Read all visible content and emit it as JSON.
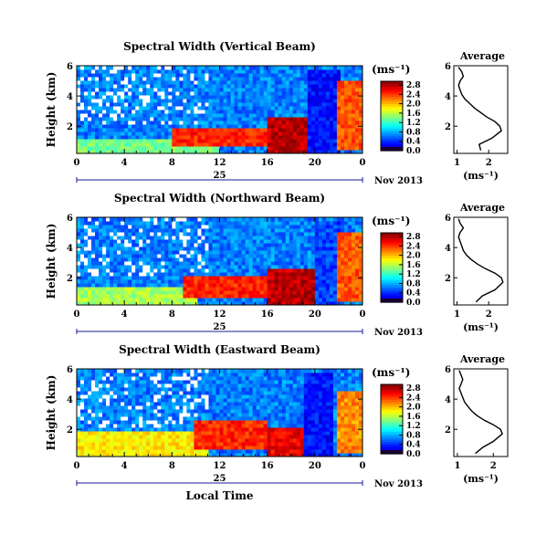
{
  "figure": {
    "time_axis_label": "Local Time",
    "day_label": "25",
    "date_label": "Nov 2013"
  },
  "chart_data": [
    {
      "type": "heatmap",
      "title": "Spectral Width (Vertical Beam)",
      "xlabel": "",
      "ylabel": "Height (km)",
      "x_ticks": [
        "0",
        "4",
        "8",
        "12",
        "16",
        "20",
        "0"
      ],
      "y_ticks": [
        "2",
        "4",
        "6"
      ],
      "xlim": [
        0,
        24
      ],
      "ylim": [
        0.2,
        6
      ],
      "colorbar": {
        "unit": "(ms⁻¹)",
        "ticks": [
          "0.0",
          "0.4",
          "0.8",
          "1.2",
          "1.6",
          "2.0",
          "2.4",
          "2.8"
        ],
        "range": [
          0,
          3
        ]
      },
      "features": [
        {
          "x": [
            0,
            12
          ],
          "y": [
            0.3,
            1.2
          ],
          "level": 0.55
        },
        {
          "x": [
            8,
            16
          ],
          "y": [
            0.6,
            2.0
          ],
          "level": 0.9
        },
        {
          "x": [
            16,
            19.5
          ],
          "y": [
            0.3,
            2.5
          ],
          "level": 1.0
        },
        {
          "x": [
            19.5,
            22
          ],
          "y": [
            0.3,
            5.8
          ],
          "level": 0.2
        },
        {
          "x": [
            22,
            24
          ],
          "y": [
            0.5,
            5.0
          ],
          "level": 0.85
        }
      ]
    },
    {
      "type": "line",
      "title": "Average",
      "xlabel": "(ms⁻¹)",
      "x_ticks": [
        "1",
        "2"
      ],
      "y_ticks": [
        "2",
        "4",
        "6"
      ],
      "xlim": [
        0.9,
        2.6
      ],
      "ylim": [
        0.2,
        6
      ],
      "series": [
        {
          "x": [
            1.75,
            1.7,
            2.1,
            2.4,
            2.35,
            2.2,
            1.95,
            1.75,
            1.55,
            1.4,
            1.25,
            1.15,
            1.1,
            1.05,
            1.1,
            1.2,
            1.15,
            1.05
          ],
          "y": [
            0.4,
            0.8,
            1.2,
            1.7,
            2.0,
            2.3,
            2.6,
            2.9,
            3.2,
            3.5,
            3.8,
            4.1,
            4.4,
            4.7,
            5.0,
            5.3,
            5.6,
            5.9
          ]
        }
      ]
    },
    {
      "type": "heatmap",
      "title": "Spectral Width (Northward Beam)",
      "xlabel": "",
      "ylabel": "Height (km)",
      "x_ticks": [
        "0",
        "4",
        "8",
        "12",
        "16",
        "20",
        "0"
      ],
      "y_ticks": [
        "2",
        "4",
        "6"
      ],
      "xlim": [
        0,
        24
      ],
      "ylim": [
        0.2,
        6
      ],
      "colorbar": {
        "unit": "(ms⁻¹)",
        "ticks": [
          "0.0",
          "0.4",
          "0.8",
          "1.2",
          "1.6",
          "2.0",
          "2.4",
          "2.8"
        ],
        "range": [
          0,
          3
        ]
      },
      "features": [
        {
          "x": [
            0,
            10
          ],
          "y": [
            0.3,
            1.5
          ],
          "level": 0.6
        },
        {
          "x": [
            9,
            16
          ],
          "y": [
            0.6,
            2.2
          ],
          "level": 0.9
        },
        {
          "x": [
            16,
            20
          ],
          "y": [
            0.3,
            2.6
          ],
          "level": 1.0
        },
        {
          "x": [
            20,
            22
          ],
          "y": [
            0.3,
            5.8
          ],
          "level": 0.25
        },
        {
          "x": [
            22,
            24
          ],
          "y": [
            0.5,
            5.0
          ],
          "level": 0.85
        }
      ]
    },
    {
      "type": "line",
      "title": "Average",
      "xlabel": "(ms⁻¹)",
      "x_ticks": [
        "1",
        "2"
      ],
      "y_ticks": [
        "2",
        "4",
        "6"
      ],
      "xlim": [
        0.9,
        2.6
      ],
      "ylim": [
        0.2,
        6
      ],
      "series": [
        {
          "x": [
            1.6,
            1.8,
            2.2,
            2.45,
            2.4,
            2.2,
            1.9,
            1.65,
            1.45,
            1.3,
            1.2,
            1.15,
            1.1,
            1.05,
            1.1,
            1.2,
            1.1,
            1.05
          ],
          "y": [
            0.4,
            0.8,
            1.2,
            1.7,
            2.0,
            2.3,
            2.6,
            2.9,
            3.2,
            3.5,
            3.8,
            4.1,
            4.4,
            4.7,
            5.0,
            5.3,
            5.6,
            5.9
          ]
        }
      ]
    },
    {
      "type": "heatmap",
      "title": "Spectral Width (Eastward Beam)",
      "xlabel": "Local Time",
      "ylabel": "Height (km)",
      "x_ticks": [
        "0",
        "4",
        "8",
        "12",
        "16",
        "20",
        "0"
      ],
      "y_ticks": [
        "2",
        "4",
        "6"
      ],
      "xlim": [
        0,
        24
      ],
      "ylim": [
        0.2,
        6
      ],
      "colorbar": {
        "unit": "(ms⁻¹)",
        "ticks": [
          "0.0",
          "0.4",
          "0.8",
          "1.2",
          "1.6",
          "2.0",
          "2.4",
          "2.8"
        ],
        "range": [
          0,
          3
        ]
      },
      "features": [
        {
          "x": [
            0,
            11
          ],
          "y": [
            0.3,
            1.8
          ],
          "level": 0.7
        },
        {
          "x": [
            10,
            16
          ],
          "y": [
            0.6,
            2.5
          ],
          "level": 0.9
        },
        {
          "x": [
            16,
            19
          ],
          "y": [
            0.3,
            2.2
          ],
          "level": 0.95
        },
        {
          "x": [
            19,
            21.5
          ],
          "y": [
            0.3,
            5.8
          ],
          "level": 0.2
        },
        {
          "x": [
            22,
            24
          ],
          "y": [
            0.4,
            4.5
          ],
          "level": 0.8
        }
      ]
    },
    {
      "type": "line",
      "title": "Average",
      "xlabel": "(ms⁻¹)",
      "x_ticks": [
        "1",
        "2"
      ],
      "y_ticks": [
        "2",
        "4",
        "6"
      ],
      "xlim": [
        0.9,
        2.4
      ],
      "ylim": [
        0.2,
        6
      ],
      "series": [
        {
          "x": [
            1.5,
            1.7,
            2.0,
            2.25,
            2.2,
            2.0,
            1.75,
            1.55,
            1.4,
            1.3,
            1.2,
            1.15,
            1.1,
            1.05,
            1.1,
            1.15,
            1.1,
            1.05
          ],
          "y": [
            0.4,
            0.8,
            1.2,
            1.7,
            2.0,
            2.3,
            2.6,
            2.9,
            3.2,
            3.5,
            3.8,
            4.1,
            4.4,
            4.7,
            5.0,
            5.3,
            5.6,
            5.9
          ]
        }
      ]
    }
  ]
}
